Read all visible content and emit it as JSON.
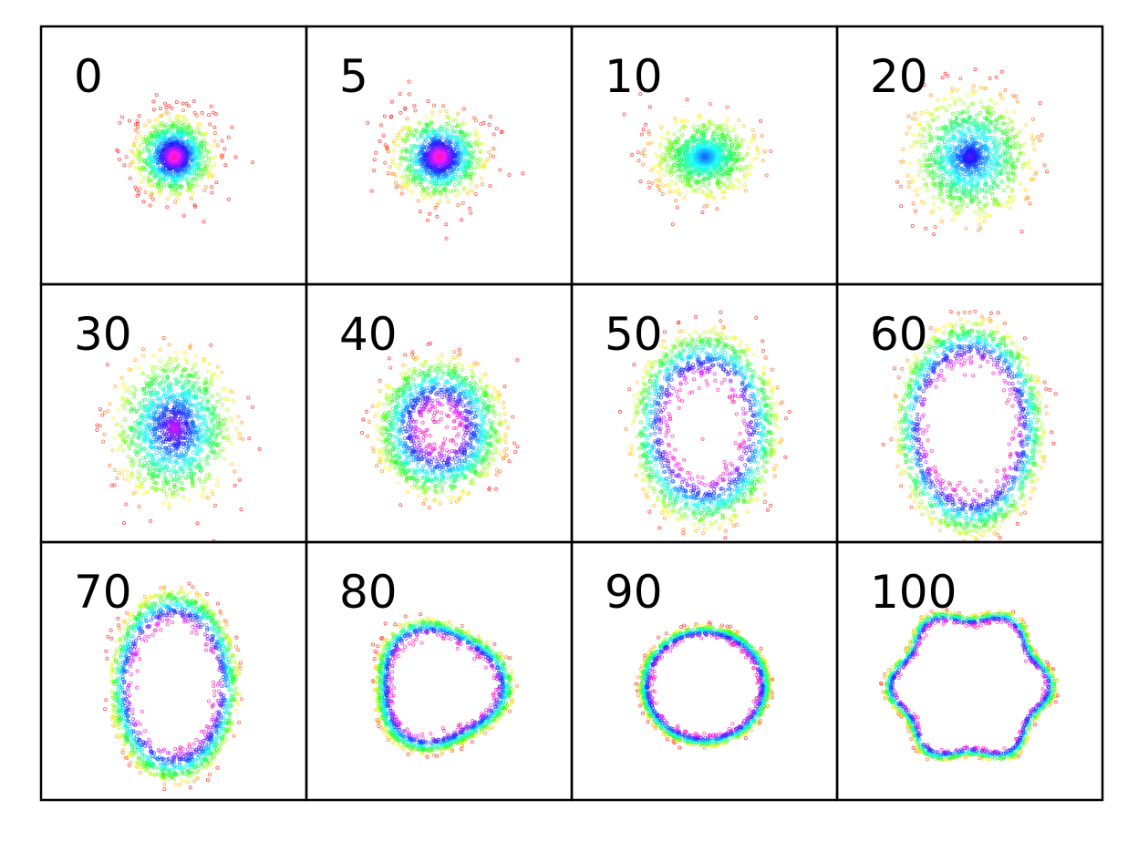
{
  "chart_data": {
    "type": "scatter",
    "title": "",
    "xlabel": "",
    "ylabel": "",
    "grid": false,
    "layout": {
      "rows": 3,
      "cols": 4
    },
    "color_scale": "hsv rainbow by point order (red → orange → yellow → green → cyan → blue → purple → magenta)",
    "axis_ticks": "none",
    "panels": [
      {
        "label": "0",
        "shape": "gaussian-blob",
        "ring_radius": 0.0,
        "spread": 0.3,
        "aspect": 1.0,
        "center": [
          0.0,
          0.0
        ],
        "lobes": 0
      },
      {
        "label": "5",
        "shape": "gaussian-blob",
        "ring_radius": 0.02,
        "spread": 0.34,
        "aspect": 0.95,
        "center": [
          0.0,
          0.0
        ],
        "lobes": 0
      },
      {
        "label": "10",
        "shape": "elongated-blob",
        "ring_radius": 0.1,
        "spread": 0.34,
        "aspect": 0.8,
        "center": [
          0.0,
          0.0
        ],
        "lobes": 0
      },
      {
        "label": "20",
        "shape": "blob-with-hollow",
        "ring_radius": 0.18,
        "spread": 0.33,
        "aspect": 1.05,
        "center": [
          0.0,
          0.0
        ],
        "lobes": 0
      },
      {
        "label": "30",
        "shape": "filled-ring",
        "ring_radius": 0.22,
        "spread": 0.28,
        "aspect": 1.25,
        "center": [
          0.0,
          0.0
        ],
        "lobes": 0
      },
      {
        "label": "40",
        "shape": "filled-ring",
        "ring_radius": 0.32,
        "spread": 0.19,
        "aspect": 1.1,
        "center": [
          0.0,
          0.0
        ],
        "lobes": 0
      },
      {
        "label": "50",
        "shape": "ring",
        "ring_radius": 0.42,
        "spread": 0.15,
        "aspect": 1.35,
        "center": [
          0.0,
          0.0
        ],
        "lobes": 0
      },
      {
        "label": "60",
        "shape": "ring",
        "ring_radius": 0.45,
        "spread": 0.12,
        "aspect": 1.45,
        "center": [
          0.0,
          0.0
        ],
        "lobes": 0
      },
      {
        "label": "70",
        "shape": "ring",
        "ring_radius": 0.4,
        "spread": 0.09,
        "aspect": 1.5,
        "center": [
          0.0,
          0.0
        ],
        "lobes": 0
      },
      {
        "label": "80",
        "shape": "thin-ring",
        "ring_radius": 0.45,
        "spread": 0.07,
        "aspect": 0.95,
        "center": [
          0.0,
          0.0
        ],
        "lobes": 3
      },
      {
        "label": "90",
        "shape": "thin-ring",
        "ring_radius": 0.44,
        "spread": 0.05,
        "aspect": 0.92,
        "center": [
          0.0,
          0.0
        ],
        "lobes": 0
      },
      {
        "label": "100",
        "shape": "thin-ring",
        "ring_radius": 0.55,
        "spread": 0.045,
        "aspect": 0.95,
        "center": [
          0.0,
          0.0
        ],
        "lobes": 6
      }
    ]
  }
}
